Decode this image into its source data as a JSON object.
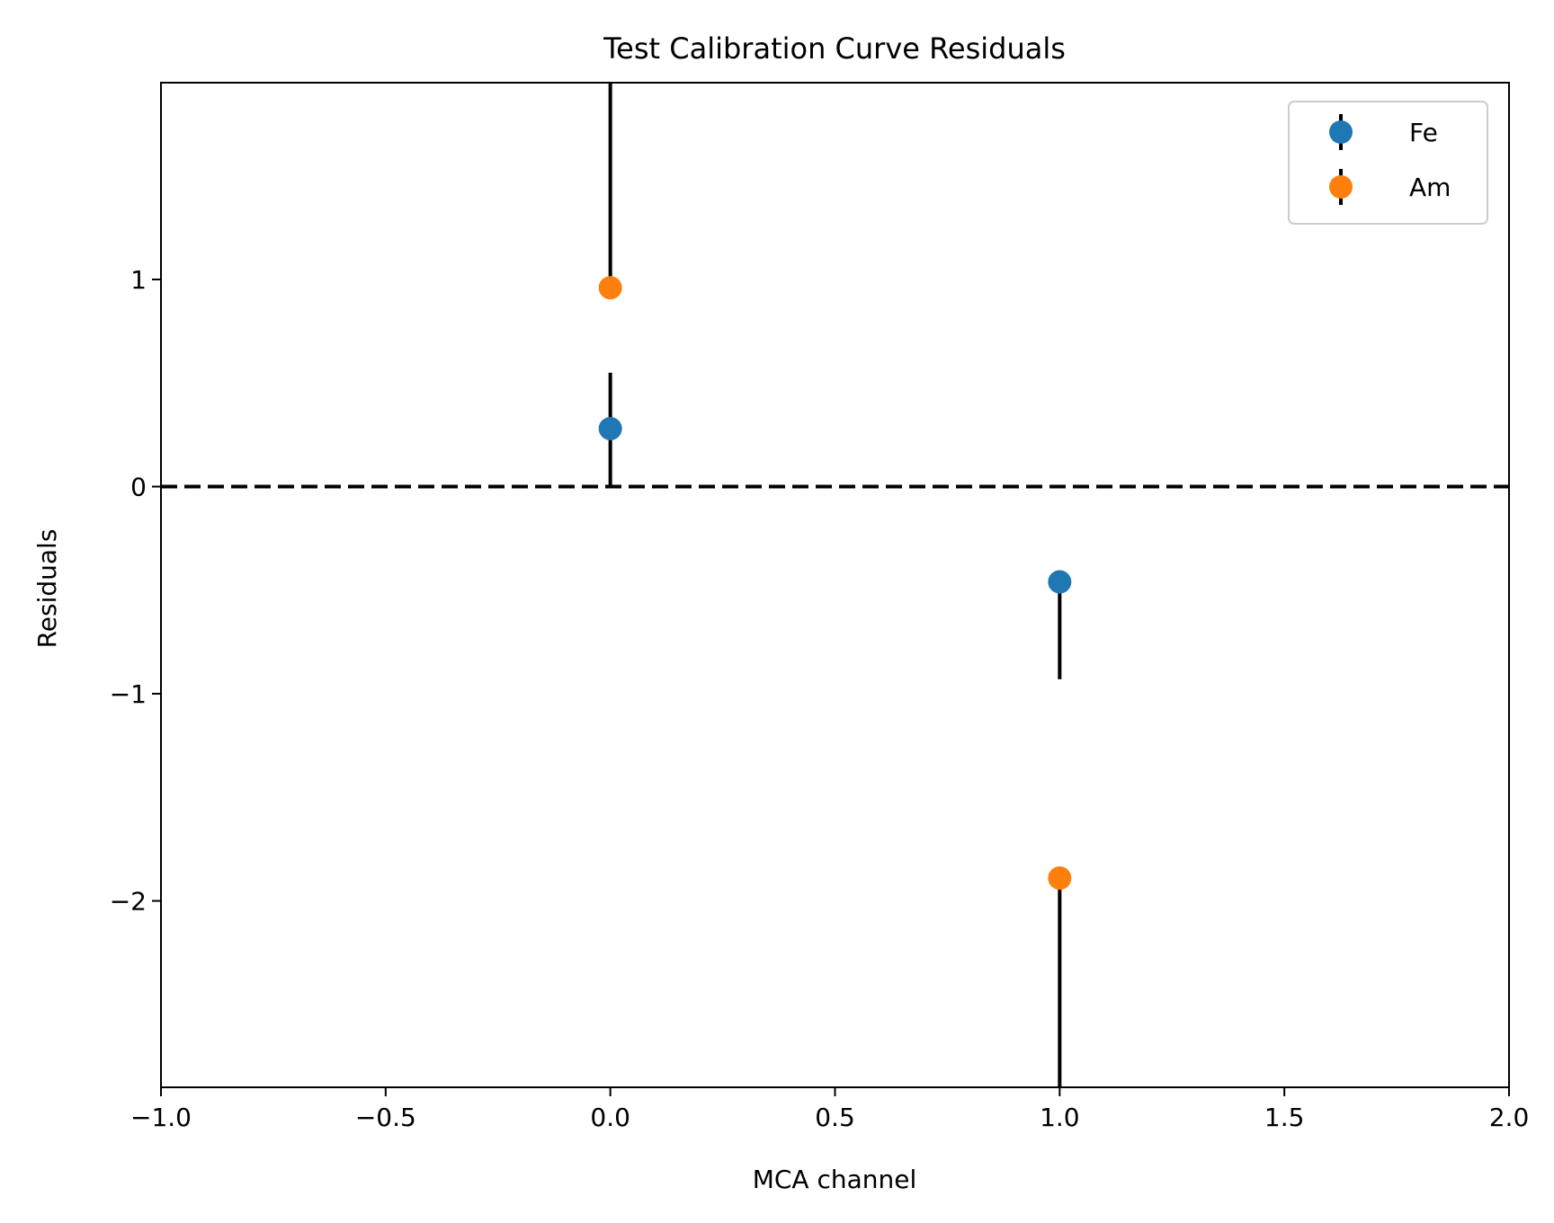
{
  "chart_data": {
    "type": "scatter",
    "title": "Test Calibration Curve Residuals",
    "xlabel": "MCA channel",
    "ylabel": "Residuals",
    "xlim": [
      -1.0,
      2.0
    ],
    "ylim": [
      -2.9,
      1.95
    ],
    "x_ticks": [
      -1.0,
      -0.5,
      0.0,
      0.5,
      1.0,
      1.5,
      2.0
    ],
    "x_tick_labels": [
      "−1.0",
      "−0.5",
      "0.0",
      "0.5",
      "1.0",
      "1.5",
      "2.0"
    ],
    "y_ticks": [
      -2,
      -1,
      0,
      1
    ],
    "y_tick_labels": [
      "−2",
      "−1",
      "0",
      "1"
    ],
    "grid": false,
    "legend_position": "top-right",
    "reference_line": {
      "y": 0,
      "style": "dashed",
      "color": "#000000"
    },
    "series": [
      {
        "name": "Fe",
        "color": "#1f77b4",
        "points": [
          {
            "x": 0,
            "y": 0.28,
            "yerr_low": 0.0,
            "yerr_high": 0.55
          },
          {
            "x": 1,
            "y": -0.46,
            "yerr_low": -0.93,
            "yerr_high": -0.46
          }
        ]
      },
      {
        "name": "Am",
        "color": "#ff7f0e",
        "points": [
          {
            "x": 0,
            "y": 0.96,
            "yerr_low": 0.96,
            "yerr_high": 1.95
          },
          {
            "x": 1,
            "y": -1.89,
            "yerr_low": -2.9,
            "yerr_high": -1.89
          }
        ]
      }
    ]
  }
}
